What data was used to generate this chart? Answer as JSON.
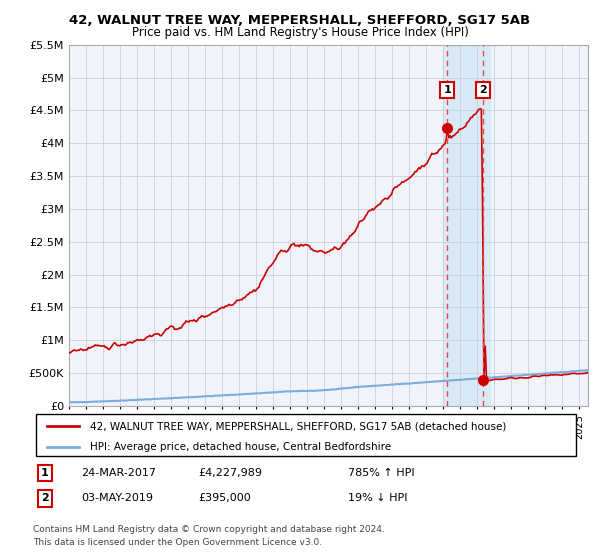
{
  "title": "42, WALNUT TREE WAY, MEPPERSHALL, SHEFFORD, SG17 5AB",
  "subtitle": "Price paid vs. HM Land Registry's House Price Index (HPI)",
  "legend_line1": "42, WALNUT TREE WAY, MEPPERSHALL, SHEFFORD, SG17 5AB (detached house)",
  "legend_line2": "HPI: Average price, detached house, Central Bedfordshire",
  "annotation1_label": "1",
  "annotation1_date": "24-MAR-2017",
  "annotation1_price": "£4,227,989",
  "annotation1_hpi": "785% ↑ HPI",
  "annotation2_label": "2",
  "annotation2_date": "03-MAY-2019",
  "annotation2_price": "£395,000",
  "annotation2_hpi": "19% ↓ HPI",
  "footer": "Contains HM Land Registry data © Crown copyright and database right 2024.\nThis data is licensed under the Open Government Licence v3.0.",
  "hpi_color": "#7aaddc",
  "price_color": "#cc0000",
  "point_color": "#cc0000",
  "highlight_color": "#d8eaf7",
  "dashed_color": "#ee4444",
  "bg_color": "#f0f4fa",
  "xmin": 1995.0,
  "xmax": 2025.5,
  "ymin": 0,
  "ymax": 5500000,
  "yticks": [
    0,
    500000,
    1000000,
    1500000,
    2000000,
    2500000,
    3000000,
    3500000,
    4000000,
    4500000,
    5000000,
    5500000
  ],
  "ytick_labels": [
    "£0",
    "£500K",
    "£1M",
    "£1.5M",
    "£2M",
    "£2.5M",
    "£3M",
    "£3.5M",
    "£4M",
    "£4.5M",
    "£5M",
    "£5.5M"
  ],
  "point1_x": 2017.23,
  "point1_y": 4227989,
  "point2_x": 2019.34,
  "point2_y": 395000,
  "highlight_xmin": 2017.0,
  "highlight_xmax": 2019.75
}
